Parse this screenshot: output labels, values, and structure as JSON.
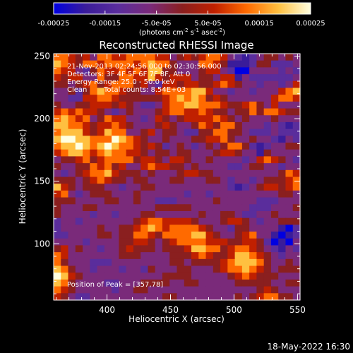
{
  "chart_data": {
    "type": "heatmap",
    "title": "Reconstructed RHESSI Image",
    "xlabel": "Heliocentric X (arcsec)",
    "ylabel": "Heliocentric Y (arcsec)",
    "xlim": [
      358,
      552
    ],
    "ylim": [
      55,
      252
    ],
    "x_ticks": [
      400,
      450,
      500,
      550
    ],
    "y_ticks": [
      100,
      150,
      200,
      250
    ],
    "annotations": {
      "time_range": "21-Nov-2013 02:24:56.000 to 02:30:56.000",
      "detectors": "Detectors: 3F 4F 5F 6F 7F 8F, Att 0",
      "energy": "Energy Range: 25.0 - 50.0 keV",
      "method": "Clean",
      "total_counts": "Total counts: 8.54E+03",
      "peak": "Position of Peak = [357,78]"
    },
    "colorbar": {
      "min": -0.00025,
      "max": 0.00025,
      "tick_labels": [
        "-0.00025",
        "-0.00015",
        "-5.0e-05",
        "5.0e-05",
        "0.00015",
        "0.00025"
      ],
      "tick_values": [
        -0.00025,
        -0.00015,
        -5e-05,
        5e-05,
        0.00015,
        0.00025
      ],
      "units_prefix": "(photons cm",
      "units_sup1": "-2",
      "units_mid1": " s",
      "units_sup2": "-1",
      "units_mid2": " asec",
      "units_sup3": "-2",
      "units_suffix": ")",
      "colormap": [
        "#0000e0",
        "#3a1c9a",
        "#5a2d9c",
        "#7a2a7a",
        "#8a1f1f",
        "#c02000",
        "#ff6a00",
        "#ffc040",
        "#ffffe0"
      ]
    },
    "value_grid": [
      [
        6,
        6,
        5,
        4,
        5,
        3,
        6,
        6,
        5,
        5,
        6,
        6,
        6,
        6,
        5,
        5,
        3,
        4,
        5,
        4,
        5,
        6,
        6,
        5,
        3,
        2,
        1,
        2,
        3,
        4,
        4,
        3,
        4,
        3
      ],
      [
        7,
        6,
        5,
        4,
        6,
        6,
        5,
        6,
        6,
        6,
        6,
        5,
        6,
        7,
        6,
        6,
        4,
        3,
        3,
        3,
        6,
        6,
        5,
        4,
        1,
        1,
        1,
        2,
        4,
        4,
        2,
        2,
        2,
        3
      ],
      [
        6,
        5,
        5,
        3,
        2,
        4,
        6,
        5,
        5,
        6,
        5,
        6,
        5,
        7,
        7,
        4,
        4,
        3,
        3,
        3,
        4,
        5,
        5,
        3,
        2,
        0,
        0,
        3,
        3,
        3,
        3,
        2,
        3,
        2
      ],
      [
        5,
        4,
        5,
        5,
        3,
        3,
        6,
        4,
        4,
        6,
        6,
        5,
        5,
        7,
        5,
        4,
        5,
        5,
        5,
        3,
        4,
        4,
        3,
        5,
        5,
        1,
        3,
        2,
        2,
        2,
        2,
        2,
        2,
        3
      ],
      [
        4,
        4,
        3,
        4,
        5,
        6,
        4,
        5,
        6,
        6,
        6,
        4,
        5,
        3,
        2,
        5,
        5,
        4,
        5,
        5,
        4,
        4,
        5,
        6,
        5,
        4,
        3,
        3,
        2,
        3,
        3,
        2,
        3,
        5
      ],
      [
        3,
        3,
        4,
        2,
        4,
        6,
        7,
        6,
        6,
        5,
        4,
        4,
        3,
        3,
        5,
        6,
        6,
        6,
        6,
        7,
        7,
        5,
        3,
        3,
        2,
        3,
        3,
        2,
        3,
        3,
        3,
        5,
        6,
        7
      ],
      [
        3,
        3,
        2,
        2,
        5,
        5,
        6,
        6,
        5,
        4,
        4,
        4,
        4,
        4,
        4,
        5,
        6,
        7,
        6,
        7,
        6,
        4,
        5,
        4,
        3,
        3,
        3,
        3,
        3,
        3,
        5,
        6,
        6,
        5
      ],
      [
        4,
        3,
        3,
        4,
        4,
        5,
        5,
        5,
        4,
        5,
        4,
        3,
        2,
        2,
        3,
        5,
        6,
        6,
        7,
        7,
        6,
        6,
        6,
        5,
        4,
        4,
        5,
        6,
        4,
        3,
        5,
        3,
        3,
        3
      ],
      [
        5,
        6,
        5,
        6,
        5,
        5,
        4,
        3,
        2,
        3,
        4,
        3,
        3,
        3,
        4,
        5,
        6,
        6,
        5,
        5,
        6,
        5,
        4,
        4,
        3,
        4,
        4,
        6,
        4,
        6,
        6,
        5,
        4,
        4
      ],
      [
        6,
        7,
        6,
        5,
        6,
        3,
        4,
        6,
        5,
        5,
        3,
        3,
        2,
        3,
        5,
        4,
        3,
        4,
        5,
        5,
        5,
        5,
        6,
        5,
        4,
        3,
        4,
        3,
        3,
        3,
        4,
        3,
        3,
        3
      ],
      [
        7,
        7,
        6,
        6,
        5,
        4,
        5,
        5,
        6,
        5,
        4,
        3,
        3,
        3,
        4,
        5,
        4,
        3,
        3,
        4,
        6,
        5,
        4,
        6,
        6,
        4,
        3,
        3,
        3,
        2,
        3,
        2,
        1,
        2
      ],
      [
        6,
        7,
        7,
        7,
        5,
        4,
        5,
        7,
        6,
        6,
        3,
        3,
        4,
        5,
        3,
        4,
        4,
        3,
        2,
        2,
        4,
        4,
        6,
        6,
        4,
        4,
        3,
        2,
        2,
        2,
        3,
        2,
        2,
        2
      ],
      [
        7,
        8,
        8,
        7,
        7,
        6,
        6,
        6,
        8,
        7,
        6,
        5,
        4,
        3,
        3,
        4,
        3,
        3,
        3,
        4,
        4,
        5,
        5,
        6,
        4,
        3,
        3,
        4,
        3,
        3,
        2,
        1,
        3,
        2
      ],
      [
        6,
        7,
        7,
        8,
        7,
        6,
        7,
        8,
        7,
        6,
        6,
        5,
        4,
        5,
        4,
        2,
        3,
        4,
        3,
        2,
        3,
        4,
        3,
        4,
        6,
        6,
        4,
        2,
        1,
        2,
        3,
        3,
        4,
        4
      ],
      [
        5,
        6,
        7,
        7,
        6,
        5,
        6,
        7,
        6,
        6,
        5,
        5,
        4,
        3,
        4,
        4,
        3,
        4,
        4,
        3,
        3,
        3,
        4,
        5,
        5,
        4,
        3,
        3,
        1,
        4,
        3,
        3,
        3,
        3
      ],
      [
        3,
        4,
        4,
        5,
        6,
        4,
        5,
        6,
        6,
        6,
        6,
        4,
        5,
        5,
        4,
        3,
        5,
        5,
        4,
        3,
        3,
        4,
        3,
        3,
        3,
        3,
        2,
        3,
        5,
        6,
        5,
        4,
        3,
        2
      ],
      [
        4,
        3,
        3,
        4,
        4,
        6,
        5,
        6,
        4,
        5,
        3,
        3,
        5,
        6,
        5,
        5,
        4,
        4,
        3,
        4,
        3,
        3,
        3,
        3,
        2,
        2,
        3,
        4,
        4,
        3,
        3,
        2,
        3,
        3
      ],
      [
        3,
        2,
        3,
        4,
        5,
        6,
        6,
        7,
        5,
        4,
        4,
        4,
        3,
        4,
        3,
        3,
        3,
        4,
        5,
        5,
        4,
        4,
        3,
        3,
        3,
        3,
        3,
        3,
        3,
        3,
        3,
        4,
        6,
        5
      ],
      [
        4,
        4,
        4,
        3,
        4,
        5,
        6,
        5,
        4,
        4,
        3,
        4,
        4,
        3,
        3,
        3,
        4,
        4,
        3,
        3,
        3,
        4,
        4,
        3,
        2,
        3,
        3,
        2,
        3,
        4,
        4,
        4,
        5,
        6
      ],
      [
        7,
        5,
        4,
        3,
        4,
        4,
        4,
        3,
        3,
        2,
        3,
        3,
        4,
        4,
        3,
        3,
        3,
        3,
        3,
        3,
        3,
        3,
        3,
        3,
        2,
        1,
        2,
        3,
        4,
        5,
        5,
        4,
        5,
        6
      ],
      [
        5,
        6,
        3,
        2,
        3,
        4,
        4,
        4,
        3,
        3,
        3,
        4,
        3,
        3,
        3,
        3,
        3,
        3,
        2,
        3,
        3,
        2,
        3,
        3,
        3,
        3,
        3,
        3,
        3,
        3,
        3,
        4,
        4,
        3
      ],
      [
        4,
        4,
        4,
        3,
        3,
        3,
        3,
        4,
        4,
        3,
        3,
        4,
        3,
        3,
        2,
        2,
        2,
        3,
        3,
        3,
        3,
        3,
        4,
        3,
        3,
        3,
        3,
        3,
        2,
        2,
        2,
        3,
        3,
        3
      ],
      [
        4,
        3,
        3,
        3,
        4,
        4,
        3,
        3,
        3,
        3,
        3,
        3,
        3,
        3,
        4,
        4,
        4,
        4,
        4,
        3,
        3,
        3,
        3,
        3,
        3,
        3,
        3,
        2,
        2,
        2,
        3,
        3,
        3,
        4
      ],
      [
        4,
        3,
        3,
        3,
        3,
        2,
        3,
        3,
        2,
        3,
        3,
        3,
        4,
        4,
        3,
        3,
        3,
        3,
        3,
        3,
        4,
        3,
        3,
        4,
        4,
        3,
        2,
        2,
        3,
        3,
        4,
        3,
        3,
        3
      ],
      [
        2,
        3,
        3,
        2,
        3,
        3,
        3,
        3,
        3,
        3,
        3,
        4,
        5,
        6,
        6,
        5,
        5,
        5,
        5,
        4,
        3,
        3,
        3,
        4,
        5,
        5,
        4,
        3,
        2,
        3,
        3,
        4,
        4,
        4
      ],
      [
        2,
        3,
        3,
        3,
        3,
        3,
        4,
        3,
        3,
        4,
        4,
        5,
        6,
        7,
        6,
        5,
        6,
        6,
        6,
        6,
        5,
        4,
        3,
        3,
        2,
        4,
        4,
        3,
        3,
        3,
        3,
        1,
        0,
        2
      ],
      [
        2,
        2,
        3,
        3,
        3,
        3,
        4,
        4,
        3,
        4,
        4,
        6,
        6,
        5,
        4,
        6,
        6,
        6,
        6,
        7,
        7,
        5,
        4,
        3,
        3,
        4,
        5,
        6,
        3,
        3,
        1,
        0,
        1,
        2
      ],
      [
        3,
        3,
        3,
        3,
        2,
        3,
        3,
        3,
        3,
        4,
        4,
        5,
        5,
        4,
        3,
        4,
        5,
        6,
        6,
        6,
        6,
        5,
        5,
        5,
        4,
        4,
        5,
        5,
        4,
        2,
        0,
        1,
        0,
        3
      ],
      [
        4,
        5,
        3,
        4,
        3,
        3,
        2,
        3,
        3,
        4,
        5,
        4,
        4,
        4,
        3,
        4,
        4,
        4,
        5,
        7,
        7,
        6,
        6,
        4,
        5,
        6,
        6,
        5,
        4,
        3,
        2,
        1,
        3,
        2
      ],
      [
        6,
        5,
        3,
        3,
        3,
        3,
        3,
        3,
        3,
        4,
        4,
        4,
        3,
        3,
        3,
        3,
        4,
        4,
        4,
        5,
        6,
        5,
        4,
        4,
        5,
        7,
        7,
        6,
        5,
        4,
        3,
        2,
        3,
        3
      ],
      [
        6,
        4,
        3,
        3,
        3,
        2,
        2,
        2,
        3,
        3,
        3,
        3,
        3,
        3,
        3,
        3,
        4,
        4,
        3,
        4,
        4,
        4,
        4,
        5,
        6,
        7,
        7,
        7,
        6,
        4,
        3,
        3,
        4,
        3
      ],
      [
        7,
        6,
        4,
        3,
        3,
        2,
        3,
        3,
        3,
        2,
        3,
        3,
        2,
        4,
        3,
        3,
        3,
        4,
        4,
        3,
        3,
        3,
        4,
        5,
        6,
        6,
        7,
        6,
        5,
        4,
        3,
        4,
        4,
        4
      ],
      [
        8,
        7,
        5,
        4,
        3,
        3,
        3,
        3,
        3,
        3,
        3,
        3,
        3,
        3,
        3,
        4,
        4,
        4,
        4,
        3,
        3,
        3,
        3,
        3,
        4,
        5,
        6,
        5,
        4,
        4,
        4,
        3,
        3,
        3
      ],
      [
        7,
        6,
        4,
        3,
        3,
        3,
        3,
        2,
        2,
        3,
        3,
        3,
        4,
        4,
        4,
        4,
        3,
        3,
        4,
        4,
        3,
        3,
        3,
        3,
        3,
        4,
        4,
        4,
        4,
        4,
        3,
        3,
        4,
        4
      ],
      [
        6,
        5,
        4,
        3,
        3,
        3,
        3,
        3,
        2,
        3,
        3,
        4,
        4,
        3,
        3,
        3,
        3,
        3,
        3,
        3,
        3,
        3,
        3,
        3,
        3,
        3,
        3,
        3,
        4,
        5,
        4,
        3,
        3,
        3
      ],
      [
        5,
        4,
        3,
        2,
        2,
        3,
        3,
        3,
        3,
        3,
        3,
        3,
        3,
        3,
        3,
        4,
        4,
        3,
        3,
        3,
        3,
        3,
        3,
        3,
        3,
        4,
        3,
        4,
        5,
        6,
        6,
        4,
        4,
        3
      ]
    ]
  },
  "footer_date": "18-May-2022 16:30"
}
